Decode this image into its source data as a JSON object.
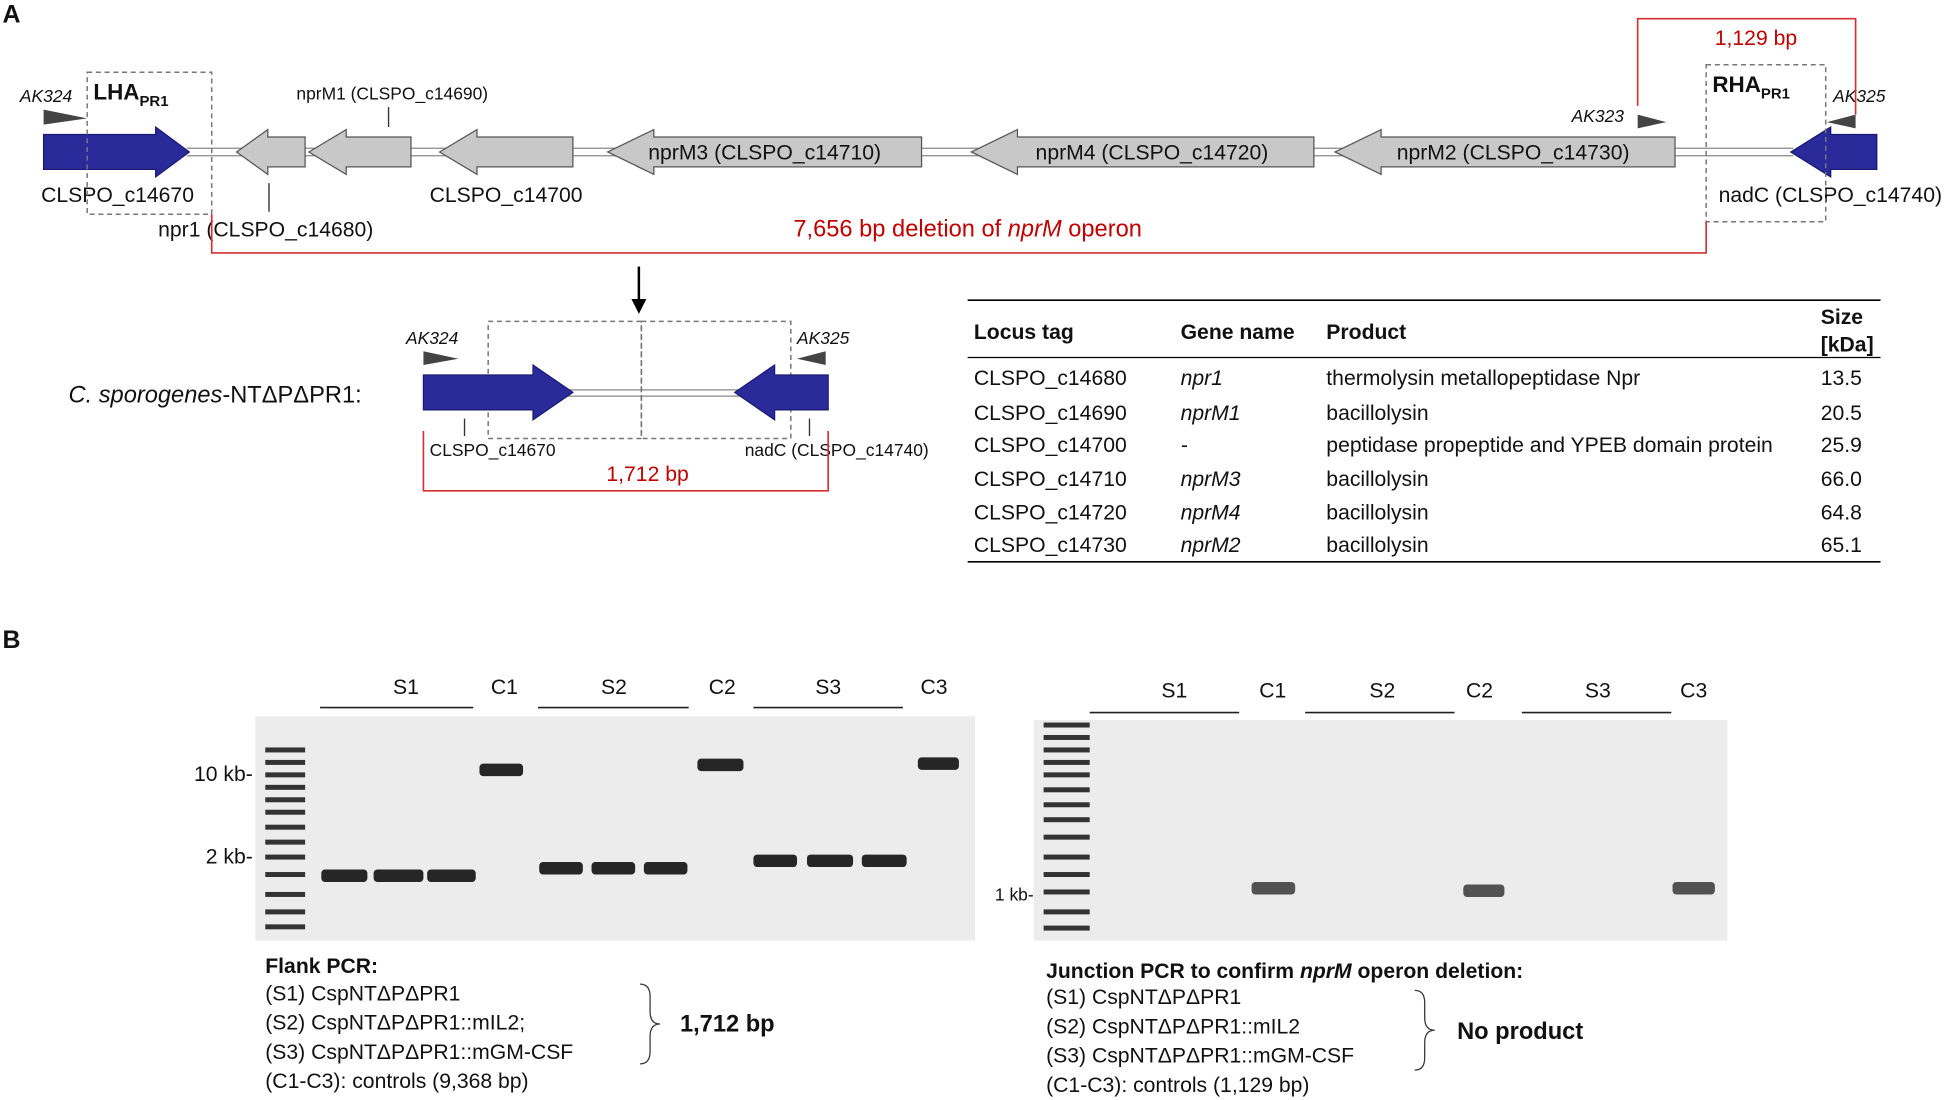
{
  "panel_a": {
    "label": "A",
    "primers": {
      "left": "AK324",
      "mid": "AK323",
      "right": "AK325"
    },
    "lha": {
      "text": "LHA",
      "sub": "PR1"
    },
    "rha": {
      "text": "RHA",
      "sub": "PR1"
    },
    "genes": {
      "c14670": "CLSPO_c14670",
      "npr1": "npr1 (CLSPO_c14680)",
      "nprM1": "nprM1 (CLSPO_c14690)",
      "c14700": "CLSPO_c14700",
      "nprM3": "nprM3 (CLSPO_c14710)",
      "nprM4": "nprM4 (CLSPO_c14720)",
      "nprM2": "nprM2 (CLSPO_c14730)",
      "nadC": "nadC (CLSPO_c14740)"
    },
    "span": "1,129 bp",
    "deletion": [
      "7,656 bp deletion of ",
      "nprM",
      " operon"
    ],
    "strain": {
      "italic": "C. sporogenes",
      "rest": "-NTΔPΔPR1:"
    },
    "mutant": {
      "primer_left": "AK324",
      "primer_right": "AK325",
      "left_gene": "CLSPO_c14670",
      "right_gene": "nadC (CLSPO_c14740)",
      "span": "1,712 bp"
    },
    "table": {
      "headers": [
        "Locus tag",
        "Gene name",
        "Product"
      ],
      "size_header": [
        "Size",
        "[kDa]"
      ],
      "rows": [
        [
          "CLSPO_c14680",
          "npr1",
          "thermolysin metallopeptidase Npr",
          "13.5"
        ],
        [
          "CLSPO_c14690",
          "nprM1",
          "bacillolysin",
          "20.5"
        ],
        [
          "CLSPO_c14700",
          "-",
          "peptidase propeptide and YPEB domain protein",
          "25.9"
        ],
        [
          "CLSPO_c14710",
          "nprM3",
          "bacillolysin",
          "66.0"
        ],
        [
          "CLSPO_c14720",
          "nprM4",
          "bacillolysin",
          "64.8"
        ],
        [
          "CLSPO_c14730",
          "nprM2",
          "bacillolysin",
          "65.1"
        ]
      ]
    }
  },
  "panel_b": {
    "label": "B",
    "flank": {
      "lanes": [
        "S1",
        "C1",
        "S2",
        "C2",
        "S3",
        "C3"
      ],
      "markers": [
        "10 kb-",
        "2 kb-"
      ],
      "title": "Flank PCR:",
      "lines": [
        "(S1) CspNTΔPΔPR1",
        "(S2) CspNTΔPΔPR1::mIL2;",
        "(S3) CspNTΔPΔPR1::mGM-CSF",
        "(C1-C3): controls (9,368 bp)"
      ],
      "result": "1,712 bp"
    },
    "junction": {
      "lanes": [
        "S1",
        "C1",
        "S2",
        "C2",
        "S3",
        "C3"
      ],
      "markers": [
        "1 kb-"
      ],
      "title": [
        "Junction PCR to confirm ",
        "nprM",
        " operon deletion:"
      ],
      "lines": [
        "(S1) CspNTΔPΔPR1",
        "(S2) CspNTΔPΔPR1::mIL2",
        "(S3) CspNTΔPΔPR1::mGM-CSF",
        "(C1-C3): controls (1,129 bp)"
      ],
      "result": "No product"
    }
  }
}
